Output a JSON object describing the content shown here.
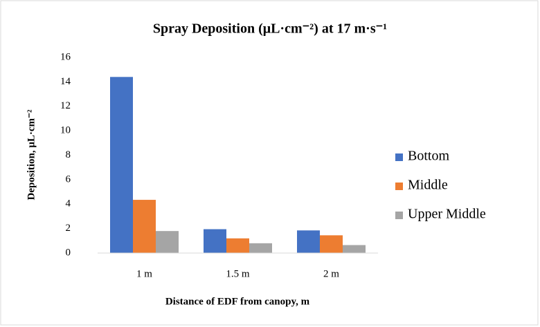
{
  "chart_data": {
    "type": "bar",
    "title": "Spray Deposition (μL·cm⁻²) at 17 m·s⁻¹",
    "y_label": "Deposition, μL·cm⁻²",
    "x_label": "Distance of EDF from canopy, m",
    "categories": [
      "1 m",
      "1.5 m",
      "2 m"
    ],
    "series": [
      {
        "name": "Bottom",
        "color": "#4472c4",
        "values": [
          14.4,
          1.95,
          1.85
        ]
      },
      {
        "name": "Middle",
        "color": "#ed7d31",
        "values": [
          4.35,
          1.2,
          1.45
        ]
      },
      {
        "name": "Upper Middle",
        "color": "#a5a5a5",
        "values": [
          1.8,
          0.8,
          0.65
        ]
      }
    ],
    "ylim": [
      0,
      16
    ],
    "yticks": [
      0,
      2,
      4,
      6,
      8,
      10,
      12,
      14,
      16
    ],
    "grid": false,
    "legend": "right"
  }
}
